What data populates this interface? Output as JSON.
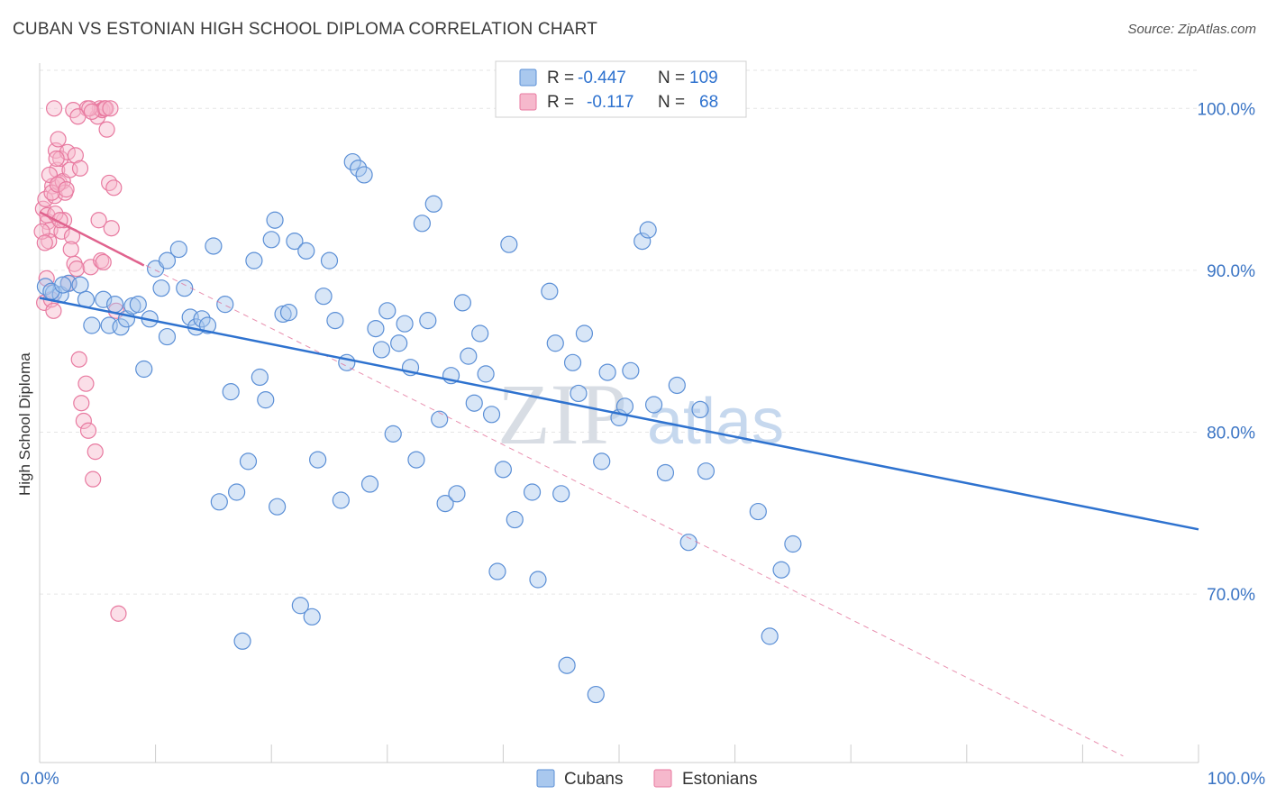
{
  "title": "CUBAN VS ESTONIAN HIGH SCHOOL DIPLOMA CORRELATION CHART",
  "source": "Source: ZipAtlas.com",
  "watermark": {
    "zip": "ZIP",
    "atlas": "atlas"
  },
  "colors": {
    "cubans": "#a9c8ee",
    "cubans_stroke": "#5b8fd6",
    "cubans_line": "#2e72cf",
    "estonians": "#f6b8cc",
    "estonians_stroke": "#e87aa0",
    "estonians_line": "#e0638e",
    "axis_text": "#3a74c4"
  },
  "legend_box": {
    "rows": [
      {
        "r_label": "R =",
        "r_value": "-0.447",
        "n_label": "N =",
        "n_value": "109"
      },
      {
        "r_label": "R =",
        "r_value": "-0.117",
        "n_label": "N =",
        "n_value": "68"
      }
    ]
  },
  "chart_data": {
    "type": "scatter",
    "title": "CUBAN VS ESTONIAN HIGH SCHOOL DIPLOMA CORRELATION CHART",
    "xlabel": "",
    "ylabel": "High School Diploma",
    "xlim": [
      0,
      100
    ],
    "ylim": [
      59.6,
      102.8
    ],
    "x_tick_labels": [
      "0.0%",
      "100.0%"
    ],
    "y_ticks": [
      70,
      80,
      90,
      100
    ],
    "y_tick_labels": [
      "70.0%",
      "80.0%",
      "90.0%",
      "100.0%"
    ],
    "grid": true,
    "legend_placement": "bottom",
    "series": [
      {
        "name": "Cubans",
        "r": -0.447,
        "n": 109,
        "trend": {
          "x": [
            0,
            100
          ],
          "y": [
            88.3,
            74.0
          ]
        },
        "points": [
          [
            0.5,
            89.0
          ],
          [
            1.2,
            88.6
          ],
          [
            1.8,
            88.5
          ],
          [
            2.5,
            89.2
          ],
          [
            3.5,
            89.1
          ],
          [
            4.0,
            88.2
          ],
          [
            4.5,
            86.6
          ],
          [
            5.5,
            88.2
          ],
          [
            6.0,
            86.6
          ],
          [
            6.5,
            87.9
          ],
          [
            7.0,
            86.5
          ],
          [
            7.5,
            87.0
          ],
          [
            8.0,
            87.8
          ],
          [
            8.5,
            87.9
          ],
          [
            9.0,
            83.9
          ],
          [
            9.5,
            87.0
          ],
          [
            10.0,
            90.1
          ],
          [
            10.5,
            88.9
          ],
          [
            11.0,
            90.6
          ],
          [
            12.0,
            91.3
          ],
          [
            11.0,
            85.9
          ],
          [
            12.5,
            88.9
          ],
          [
            13.0,
            87.1
          ],
          [
            13.5,
            86.5
          ],
          [
            14.0,
            87.0
          ],
          [
            14.5,
            86.6
          ],
          [
            15.0,
            91.5
          ],
          [
            15.5,
            75.7
          ],
          [
            16.0,
            87.9
          ],
          [
            16.5,
            82.5
          ],
          [
            17.0,
            76.3
          ],
          [
            17.5,
            67.1
          ],
          [
            18.0,
            78.2
          ],
          [
            18.5,
            90.6
          ],
          [
            19.0,
            83.4
          ],
          [
            19.5,
            82.0
          ],
          [
            20.0,
            91.9
          ],
          [
            20.3,
            93.1
          ],
          [
            20.5,
            75.4
          ],
          [
            21.0,
            87.3
          ],
          [
            21.5,
            87.4
          ],
          [
            22.0,
            91.8
          ],
          [
            22.5,
            69.3
          ],
          [
            23.0,
            91.2
          ],
          [
            23.5,
            68.6
          ],
          [
            24.0,
            78.3
          ],
          [
            24.5,
            88.4
          ],
          [
            25.0,
            90.6
          ],
          [
            25.5,
            86.9
          ],
          [
            26.0,
            75.8
          ],
          [
            26.5,
            84.3
          ],
          [
            27.0,
            96.7
          ],
          [
            27.5,
            96.3
          ],
          [
            28.0,
            95.9
          ],
          [
            28.5,
            76.8
          ],
          [
            29.0,
            86.4
          ],
          [
            29.5,
            85.1
          ],
          [
            30.0,
            87.5
          ],
          [
            30.5,
            79.9
          ],
          [
            31.0,
            85.5
          ],
          [
            31.5,
            86.7
          ],
          [
            32.0,
            84.0
          ],
          [
            32.5,
            78.3
          ],
          [
            33.0,
            92.9
          ],
          [
            33.5,
            86.9
          ],
          [
            34.0,
            94.1
          ],
          [
            34.5,
            80.8
          ],
          [
            35.0,
            75.6
          ],
          [
            35.5,
            83.5
          ],
          [
            36.0,
            76.2
          ],
          [
            36.5,
            88.0
          ],
          [
            37.0,
            84.7
          ],
          [
            37.5,
            81.8
          ],
          [
            38.0,
            86.1
          ],
          [
            38.5,
            83.6
          ],
          [
            39.0,
            81.1
          ],
          [
            39.5,
            71.4
          ],
          [
            40.0,
            77.7
          ],
          [
            40.5,
            91.6
          ],
          [
            41.0,
            74.6
          ],
          [
            42.5,
            76.3
          ],
          [
            43.0,
            70.9
          ],
          [
            44.0,
            88.7
          ],
          [
            44.5,
            85.5
          ],
          [
            45.0,
            76.2
          ],
          [
            45.5,
            65.6
          ],
          [
            46.0,
            84.3
          ],
          [
            46.5,
            82.4
          ],
          [
            47.0,
            86.1
          ],
          [
            48.0,
            63.8
          ],
          [
            48.5,
            78.2
          ],
          [
            49.0,
            83.7
          ],
          [
            50.0,
            80.9
          ],
          [
            50.5,
            81.6
          ],
          [
            51.0,
            83.8
          ],
          [
            52.0,
            91.8
          ],
          [
            52.5,
            92.5
          ],
          [
            53.0,
            81.7
          ],
          [
            54.0,
            77.5
          ],
          [
            55.0,
            82.9
          ],
          [
            56.0,
            73.2
          ],
          [
            57.0,
            81.4
          ],
          [
            57.5,
            77.6
          ],
          [
            62.0,
            75.1
          ],
          [
            63.0,
            67.4
          ],
          [
            64.0,
            71.5
          ],
          [
            65.0,
            73.1
          ],
          [
            1.0,
            88.7
          ],
          [
            2.0,
            89.1
          ]
        ]
      },
      {
        "name": "Estonians",
        "r": -0.117,
        "n": 68,
        "trend": {
          "x": [
            0,
            9.0
          ],
          "y": [
            93.6,
            90.3
          ]
        },
        "trend_extended": {
          "x": [
            0,
            93.5
          ],
          "y": [
            93.6,
            60.0
          ]
        },
        "points": [
          [
            0.3,
            93.8
          ],
          [
            0.5,
            94.4
          ],
          [
            0.7,
            93.0
          ],
          [
            0.9,
            92.5
          ],
          [
            1.1,
            95.2
          ],
          [
            1.3,
            94.6
          ],
          [
            1.5,
            96.2
          ],
          [
            1.7,
            95.4
          ],
          [
            1.9,
            92.4
          ],
          [
            2.1,
            93.1
          ],
          [
            0.4,
            88.0
          ],
          [
            0.6,
            89.5
          ],
          [
            0.8,
            91.8
          ],
          [
            1.0,
            88.2
          ],
          [
            1.2,
            87.5
          ],
          [
            1.4,
            97.4
          ],
          [
            1.6,
            98.1
          ],
          [
            1.8,
            96.9
          ],
          [
            2.0,
            95.5
          ],
          [
            2.2,
            94.8
          ],
          [
            2.4,
            97.3
          ],
          [
            2.6,
            96.2
          ],
          [
            2.8,
            92.1
          ],
          [
            3.0,
            90.4
          ],
          [
            3.2,
            90.1
          ],
          [
            3.4,
            84.5
          ],
          [
            3.6,
            81.8
          ],
          [
            3.8,
            80.7
          ],
          [
            4.0,
            83.0
          ],
          [
            4.2,
            80.1
          ],
          [
            4.4,
            90.2
          ],
          [
            4.6,
            77.1
          ],
          [
            4.8,
            78.8
          ],
          [
            5.0,
            99.5
          ],
          [
            5.2,
            100.0
          ],
          [
            5.4,
            99.9
          ],
          [
            5.6,
            100.0
          ],
          [
            5.8,
            98.7
          ],
          [
            6.0,
            95.4
          ],
          [
            6.2,
            92.6
          ],
          [
            6.4,
            95.1
          ],
          [
            6.6,
            87.5
          ],
          [
            6.8,
            68.8
          ],
          [
            2.9,
            99.9
          ],
          [
            4.1,
            100.0
          ],
          [
            3.3,
            99.5
          ],
          [
            1.25,
            100.0
          ],
          [
            1.45,
            96.9
          ],
          [
            0.2,
            92.4
          ],
          [
            0.45,
            91.7
          ],
          [
            0.65,
            93.4
          ],
          [
            0.85,
            95.9
          ],
          [
            1.05,
            94.8
          ],
          [
            1.35,
            93.5
          ],
          [
            1.55,
            95.3
          ],
          [
            1.75,
            93.1
          ],
          [
            2.3,
            95.0
          ],
          [
            2.5,
            89.2
          ],
          [
            2.7,
            91.3
          ],
          [
            3.1,
            97.1
          ],
          [
            3.5,
            96.3
          ],
          [
            4.3,
            100.0
          ],
          [
            4.5,
            99.8
          ],
          [
            5.1,
            93.1
          ],
          [
            5.3,
            90.6
          ],
          [
            5.5,
            90.5
          ],
          [
            5.7,
            100.0
          ],
          [
            6.1,
            100.0
          ]
        ]
      }
    ]
  },
  "bottom_legend": [
    {
      "label": "Cubans"
    },
    {
      "label": "Estonians"
    }
  ]
}
